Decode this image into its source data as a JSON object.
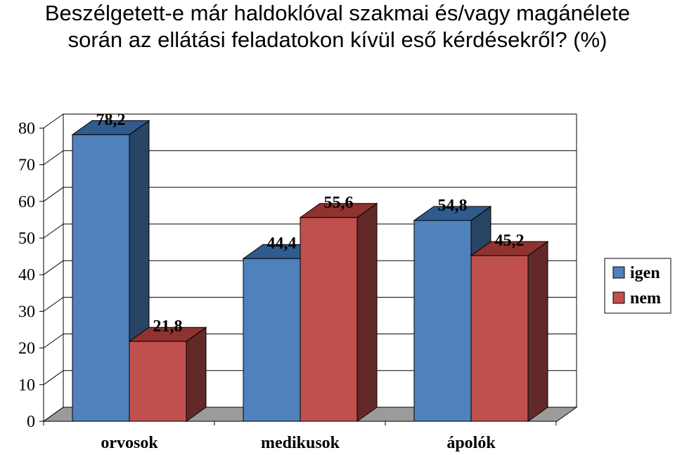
{
  "title_lines": [
    "Beszélgetett-e már haldoklóval szakmai és/vagy magánélete",
    "során az ellátási feladatokon kívül eső kérdésekről? (%)"
  ],
  "chart_data": {
    "type": "bar",
    "three_d": true,
    "categories": [
      "orvosok",
      "medikusok",
      "ápolók"
    ],
    "series": [
      {
        "name": "igen",
        "values": [
          78.2,
          44.4,
          54.8
        ],
        "labels": [
          "78,2",
          "44,4",
          "54,8"
        ]
      },
      {
        "name": "nem",
        "values": [
          21.8,
          55.6,
          45.2
        ],
        "labels": [
          "21,8",
          "55,6",
          "45,2"
        ]
      }
    ],
    "ylim": [
      0,
      80
    ],
    "yticks": [
      0,
      10,
      20,
      30,
      40,
      50,
      60,
      70,
      80
    ],
    "grid": true,
    "legend_position": "right",
    "colors": {
      "igen_front": "#4F81BD",
      "igen_side": "#2A4463",
      "igen_top": "#2F5B8E",
      "nem_front": "#C0504D",
      "nem_side": "#632928",
      "nem_top": "#8F3330",
      "floor": "#9B9B9B"
    }
  }
}
